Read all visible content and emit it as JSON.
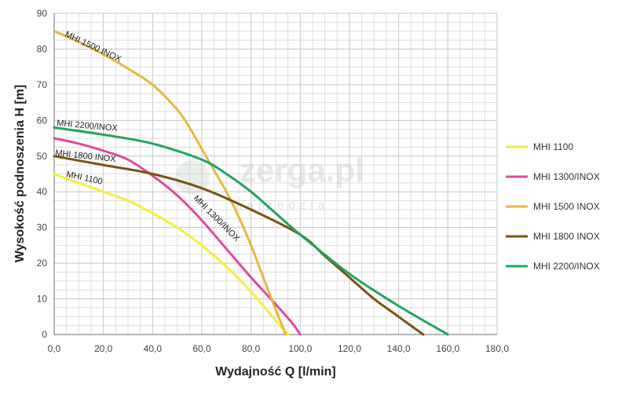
{
  "chart_data": {
    "type": "line",
    "title": "",
    "xlabel": "Wydajność Q [l/min]",
    "ylabel": "Wysokość podnoszenia H [m]",
    "xlim": [
      0,
      180
    ],
    "ylim": [
      0,
      90
    ],
    "grid": true,
    "legend_position": "right",
    "x_tick_labels": [
      "0,0",
      "20,0",
      "40,0",
      "60,0",
      "80,0",
      "100,0",
      "120,0",
      "140,0",
      "160,0",
      "180,0"
    ],
    "y_tick_labels": [
      "0",
      "10",
      "20",
      "30",
      "40",
      "50",
      "60",
      "70",
      "80",
      "90"
    ],
    "series": [
      {
        "name": "MHI 1100",
        "color": "#f5ee3b",
        "curve_label": "MHI 1100",
        "x": [
          0,
          10,
          20,
          30,
          40,
          50,
          60,
          70,
          80,
          90,
          95
        ],
        "y": [
          45,
          42.5,
          40,
          37.5,
          34,
          30,
          25,
          19,
          12,
          4,
          0
        ]
      },
      {
        "name": "MHI 1300/INOX",
        "color": "#e0499c",
        "curve_label": "MHI 1300/INOX",
        "x": [
          0,
          10,
          20,
          30,
          40,
          50,
          60,
          70,
          80,
          90,
          97,
          100
        ],
        "y": [
          55,
          53.5,
          51.5,
          49,
          44.5,
          39,
          32,
          24,
          16,
          8.5,
          3,
          0
        ]
      },
      {
        "name": "MHI 1500 INOX",
        "color": "#e6b83c",
        "curve_label": "MHI 1500 INOX",
        "x": [
          0,
          10,
          20,
          30,
          40,
          50,
          55,
          60,
          65,
          70,
          75,
          80,
          85,
          90,
          93,
          94
        ],
        "y": [
          85,
          82,
          78.5,
          74.5,
          70,
          63,
          58,
          52,
          46,
          40,
          33,
          25,
          16,
          7,
          2,
          0
        ]
      },
      {
        "name": "MHI 1800 INOX",
        "color": "#7a5410",
        "curve_label": "MHI 1800 INOX",
        "x": [
          0,
          20,
          40,
          60,
          80,
          100,
          110,
          120,
          130,
          140,
          150
        ],
        "y": [
          50,
          47.5,
          45,
          41,
          35,
          28,
          22,
          16,
          10,
          5,
          0
        ]
      },
      {
        "name": "MHI 2200/INOX",
        "color": "#22a45e",
        "curve_label": "MHI 2200/INOX",
        "x": [
          0,
          20,
          40,
          60,
          70,
          80,
          90,
          100,
          120,
          140,
          160
        ],
        "y": [
          58,
          56,
          53.5,
          49,
          45,
          40,
          34,
          28,
          17,
          8,
          0
        ]
      }
    ]
  },
  "watermark": {
    "text": "zerga.pl",
    "subtext": "narzedzia"
  }
}
